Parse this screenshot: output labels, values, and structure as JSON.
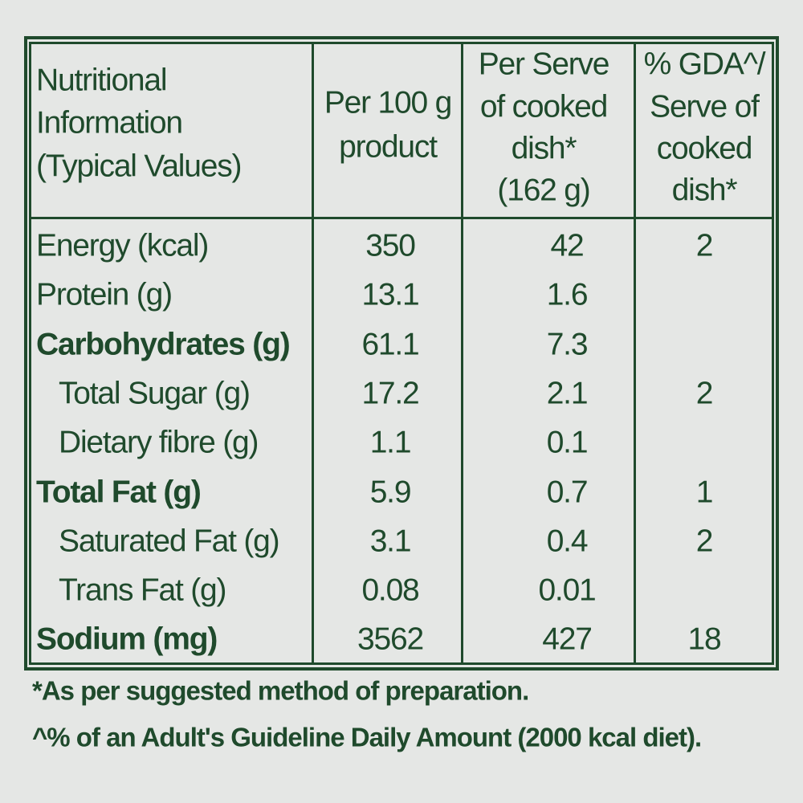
{
  "table": {
    "header": [
      [
        "Nutritional",
        "Information",
        "(Typical Values)"
      ],
      [
        "Per 100 g",
        "product"
      ],
      [
        "Per Serve",
        "of cooked",
        "dish*",
        "(162 g)"
      ],
      [
        "% GDA^/",
        "Serve of",
        "cooked",
        "dish*"
      ]
    ],
    "rows": [
      {
        "label": "Energy (kcal)",
        "cells": [
          "350",
          "42",
          "2"
        ]
      },
      {
        "label": "Protein (g)",
        "cells": [
          "13.1",
          "1.6",
          null
        ]
      },
      {
        "label": "Carbohydrates (g)",
        "bold": true,
        "cells": [
          "61.1",
          "7.3",
          null
        ]
      },
      {
        "label": "Total Sugar (g)",
        "indent": true,
        "cells": [
          "17.2",
          "2.1",
          "2"
        ]
      },
      {
        "label": "Dietary fibre (g)",
        "indent": true,
        "cells": [
          "1.1",
          "0.1",
          null
        ]
      },
      {
        "label": "Total Fat (g)",
        "bold": true,
        "cells": [
          "5.9",
          "0.7",
          "1"
        ]
      },
      {
        "label": "Saturated Fat (g)",
        "indent": true,
        "cells": [
          "3.1",
          "0.4",
          "2"
        ]
      },
      {
        "label": "Trans Fat (g)",
        "indent": true,
        "cells": [
          "0.08",
          "0.01",
          null
        ]
      },
      {
        "label": "Sodium (mg)",
        "bold": true,
        "cells": [
          "3562",
          "427",
          "18"
        ]
      }
    ]
  },
  "footnotes": [
    "*As per suggested method of preparation.",
    "^% of an Adult's Guideline Daily Amount (2000 kcal diet)."
  ]
}
